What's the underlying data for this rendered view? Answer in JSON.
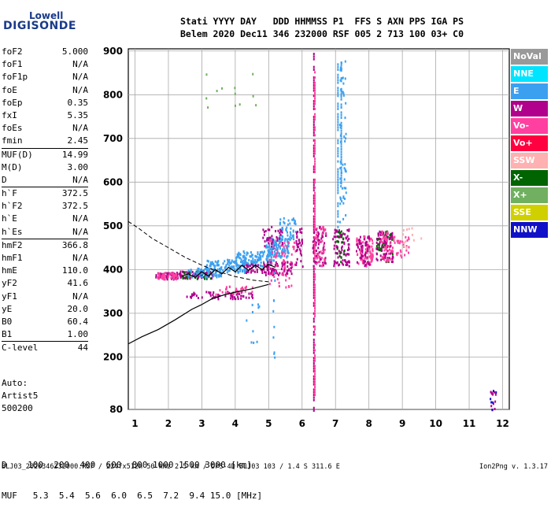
{
  "logo": {
    "brand": "Lowell",
    "name": "DIGISONDE"
  },
  "header": {
    "line1": "Stati YYYY DAY   DDD HHMMSS P1  FFS S AXN PPS IGA PS",
    "line2": "Belem 2020 Dec11 346 232000 RSF 005 2 713 100 03+ C0"
  },
  "params": [
    {
      "label": "foF2",
      "value": "5.000"
    },
    {
      "label": "foF1",
      "value": "N/A"
    },
    {
      "label": "foF1p",
      "value": "N/A"
    },
    {
      "label": "foE",
      "value": "N/A"
    },
    {
      "label": "foEp",
      "value": "0.35"
    },
    {
      "label": "fxI",
      "value": "5.35"
    },
    {
      "label": "foEs",
      "value": "N/A"
    },
    {
      "label": "fmin",
      "value": "2.45"
    },
    {
      "label": "MUF(D)",
      "value": "14.99",
      "sep": true
    },
    {
      "label": "M(D)",
      "value": "3.00"
    },
    {
      "label": "D",
      "value": "N/A"
    },
    {
      "label": "h`F",
      "value": "372.5",
      "sep": true
    },
    {
      "label": "h`F2",
      "value": "372.5"
    },
    {
      "label": "h`E",
      "value": "N/A"
    },
    {
      "label": "h`Es",
      "value": "N/A"
    },
    {
      "label": "hmF2",
      "value": "366.8",
      "sep": true
    },
    {
      "label": "hmF1",
      "value": "N/A"
    },
    {
      "label": "hmE",
      "value": "110.0"
    },
    {
      "label": "yF2",
      "value": "41.6"
    },
    {
      "label": "yF1",
      "value": "N/A"
    },
    {
      "label": "yE",
      "value": "20.0"
    },
    {
      "label": "B0",
      "value": "60.4"
    },
    {
      "label": "B1",
      "value": "1.00"
    },
    {
      "label": "C-level",
      "value": "44",
      "sep": true
    }
  ],
  "autoscaling": {
    "line1": "Auto:",
    "line2": "Artist5",
    "line3": "500200"
  },
  "legend": [
    {
      "label": "NoVal",
      "color": "#999999"
    },
    {
      "label": "NNE",
      "color": "#00e5ff"
    },
    {
      "label": "E",
      "color": "#3ca0f0"
    },
    {
      "label": "W",
      "color": "#b0008c"
    },
    {
      "label": "Vo-",
      "color": "#ff40a0"
    },
    {
      "label": "Vo+",
      "color": "#ff0040"
    },
    {
      "label": "SSW",
      "color": "#ffb0b0"
    },
    {
      "label": "X-",
      "color": "#006400"
    },
    {
      "label": "X+",
      "color": "#70b060"
    },
    {
      "label": "SSE",
      "color": "#d0d000"
    },
    {
      "label": "NNW",
      "color": "#1010c8"
    }
  ],
  "dmuf": {
    "d_line": "D    100  200  400  600  800 1000 1500 3000 [km]",
    "muf_line": "MUF   5.3  5.4  5.6  6.0  6.5  7.2  9.4 15.0 [MHz]"
  },
  "footer": "BLJ03_2020346232000.RSF / 224fx512h 50 kHz 2.5 km / DPS-4D BLJ03 103 / 1.4 S 311.6 E",
  "version": "Ion2Png v. 1.3.17",
  "chart_data": {
    "type": "scatter",
    "xlim": [
      0.8,
      12.2
    ],
    "ylim": [
      80,
      905
    ],
    "xticks": [
      1,
      2,
      3,
      4,
      5,
      6,
      7,
      8,
      9,
      10,
      11,
      12
    ],
    "yticks": [
      80,
      200,
      300,
      400,
      500,
      600,
      700,
      800,
      900
    ],
    "ytick_labels": [
      "80",
      "200",
      "300",
      "400",
      "500",
      "600",
      "700",
      "800",
      "900"
    ],
    "grid": true,
    "clusters": [
      {
        "x": [
          1.6,
          2.4
        ],
        "y": [
          380,
          395
        ],
        "color": "#b0008c",
        "n": 60
      },
      {
        "x": [
          1.6,
          2.4
        ],
        "y": [
          380,
          395
        ],
        "color": "#ff40a0",
        "n": 40
      },
      {
        "x": [
          2.3,
          3.3
        ],
        "y": [
          382,
          398
        ],
        "color": "#b0008c",
        "n": 70
      },
      {
        "x": [
          2.4,
          3.4
        ],
        "y": [
          380,
          400
        ],
        "color": "#006400",
        "n": 25
      },
      {
        "x": [
          2.5,
          3.6
        ],
        "y": [
          385,
          405
        ],
        "color": "#3ca0f0",
        "n": 70
      },
      {
        "x": [
          3.1,
          4.4
        ],
        "y": [
          395,
          425
        ],
        "color": "#3ca0f0",
        "n": 120
      },
      {
        "x": [
          4.0,
          5.1
        ],
        "y": [
          410,
          445
        ],
        "color": "#3ca0f0",
        "n": 110
      },
      {
        "x": [
          4.9,
          5.6
        ],
        "y": [
          430,
          475
        ],
        "color": "#3ca0f0",
        "n": 110
      },
      {
        "x": [
          5.3,
          5.8
        ],
        "y": [
          470,
          520
        ],
        "color": "#3ca0f0",
        "n": 50
      },
      {
        "x": [
          2.5,
          4.5
        ],
        "y": [
          335,
          352
        ],
        "color": "#b0008c",
        "n": 60
      },
      {
        "x": [
          3.4,
          4.5
        ],
        "y": [
          345,
          365
        ],
        "color": "#ff40a0",
        "n": 30
      },
      {
        "x": [
          4.2,
          5.2
        ],
        "y": [
          395,
          415
        ],
        "color": "#b0008c",
        "n": 45
      },
      {
        "x": [
          4.8,
          5.7
        ],
        "y": [
          390,
          420
        ],
        "color": "#b0008c",
        "n": 70
      },
      {
        "x": [
          5.0,
          5.8
        ],
        "y": [
          360,
          470
        ],
        "color": "#ff40a0",
        "n": 60
      },
      {
        "x": [
          4.8,
          5.4
        ],
        "y": [
          450,
          500
        ],
        "color": "#b0008c",
        "n": 40
      },
      {
        "x": [
          5.8,
          6.0
        ],
        "y": [
          400,
          500
        ],
        "color": "#b0008c",
        "n": 35
      },
      {
        "x": [
          6.3,
          6.7
        ],
        "y": [
          410,
          500
        ],
        "color": "#b0008c",
        "n": 70
      },
      {
        "x": [
          6.4,
          6.7
        ],
        "y": [
          410,
          500
        ],
        "color": "#ff40a0",
        "n": 40
      },
      {
        "x": [
          6.9,
          7.4
        ],
        "y": [
          410,
          495
        ],
        "color": "#b0008c",
        "n": 80
      },
      {
        "x": [
          7.0,
          7.3
        ],
        "y": [
          410,
          490
        ],
        "color": "#006400",
        "n": 20
      },
      {
        "x": [
          7.6,
          8.1
        ],
        "y": [
          410,
          480
        ],
        "color": "#ff40a0",
        "n": 80
      },
      {
        "x": [
          7.6,
          8.0
        ],
        "y": [
          410,
          480
        ],
        "color": "#b0008c",
        "n": 50
      },
      {
        "x": [
          8.2,
          8.7
        ],
        "y": [
          420,
          490
        ],
        "color": "#b0008c",
        "n": 90
      },
      {
        "x": [
          8.2,
          8.7
        ],
        "y": [
          420,
          490
        ],
        "color": "#006400",
        "n": 25
      },
      {
        "x": [
          8.3,
          8.7
        ],
        "y": [
          420,
          490
        ],
        "color": "#ff40a0",
        "n": 40
      },
      {
        "x": [
          8.7,
          9.2
        ],
        "y": [
          430,
          480
        ],
        "color": "#ff40a0",
        "n": 30
      },
      {
        "x": [
          9.0,
          9.6
        ],
        "y": [
          450,
          500
        ],
        "color": "#ffb0b0",
        "n": 12
      },
      {
        "x": [
          7.1,
          7.3
        ],
        "y": [
          505,
          880
        ],
        "color": "#3ca0f0",
        "n": 60
      },
      {
        "x": [
          5.1,
          5.2
        ],
        "y": [
          200,
          470
        ],
        "color": "#3ca0f0",
        "n": 15
      },
      {
        "x": [
          4.3,
          4.8
        ],
        "y": [
          200,
          340
        ],
        "color": "#3ca0f0",
        "n": 10
      },
      {
        "x": [
          3.0,
          4.6
        ],
        "y": [
          760,
          860
        ],
        "color": "#70b060",
        "n": 12
      },
      {
        "x": [
          11.6,
          11.8
        ],
        "y": [
          80,
          125
        ],
        "color": "#b0008c",
        "n": 12
      },
      {
        "x": [
          11.6,
          11.8
        ],
        "y": [
          80,
          125
        ],
        "color": "#1010c8",
        "n": 6
      }
    ],
    "vlines": [
      {
        "x": 6.33,
        "y": [
          80,
          900
        ],
        "color": "#b0008c"
      },
      {
        "x": 6.36,
        "y": [
          110,
          860
        ],
        "color": "#ff40a0"
      },
      {
        "x": 7.05,
        "y": [
          500,
          890
        ],
        "color": "#3ca0f0"
      },
      {
        "x": 7.15,
        "y": [
          600,
          880
        ],
        "color": "#3ca0f0"
      }
    ],
    "profile": {
      "x": [
        0.8,
        1.2,
        1.7,
        2.2,
        2.7,
        3.0,
        3.3,
        3.7,
        4.1,
        4.5,
        4.8,
        5.0
      ],
      "y": [
        230,
        246,
        263,
        285,
        309,
        320,
        333,
        343,
        350,
        356,
        362,
        366
      ]
    },
    "dashed": {
      "x": [
        0.8,
        1.1,
        1.5,
        2.0,
        2.5,
        3.0,
        3.5,
        4.0,
        4.5,
        5.0
      ],
      "y": [
        510,
        495,
        472,
        450,
        428,
        410,
        395,
        384,
        376,
        372
      ]
    },
    "trace": {
      "x": [
        2.4,
        2.6,
        2.8,
        3.0,
        3.2,
        3.4,
        3.6,
        3.8,
        4.0,
        4.2,
        4.4,
        4.6,
        4.8,
        5.0,
        5.2
      ],
      "y": [
        385,
        390,
        382,
        395,
        385,
        400,
        390,
        405,
        395,
        410,
        398,
        410,
        400,
        412,
        405
      ]
    }
  }
}
